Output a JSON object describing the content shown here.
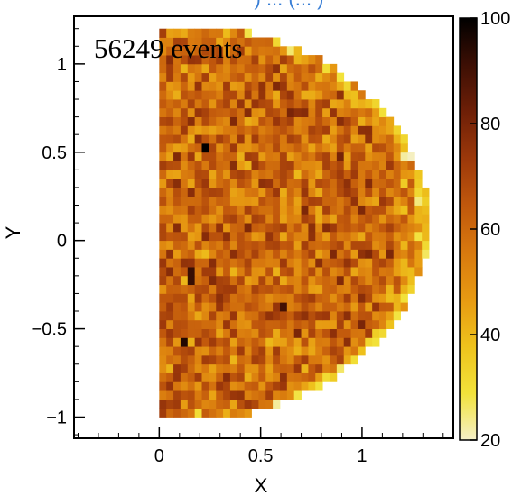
{
  "chart_data": {
    "type": "heatmap",
    "title_fragment": ") ... (... )",
    "annotation": "56249 events",
    "xlabel": "X",
    "ylabel": "Y",
    "xlim": [
      -0.42,
      1.45
    ],
    "ylim": [
      -1.12,
      1.27
    ],
    "x_ticks": [
      {
        "v": 0,
        "label": "0"
      },
      {
        "v": 0.5,
        "label": "0.5"
      },
      {
        "v": 1,
        "label": "1"
      }
    ],
    "y_ticks": [
      {
        "v": 1,
        "label": "1"
      },
      {
        "v": 0.5,
        "label": "0.5"
      },
      {
        "v": 0,
        "label": "0"
      },
      {
        "v": -0.5,
        "label": "−0.5"
      },
      {
        "v": -1,
        "label": "−1"
      }
    ],
    "colorbar": {
      "min": 20,
      "max": 100,
      "ticks": [
        {
          "v": 100,
          "label": "100"
        },
        {
          "v": 80,
          "label": "80"
        },
        {
          "v": 60,
          "label": "60"
        },
        {
          "v": 40,
          "label": "40"
        },
        {
          "v": 20,
          "label": "20"
        }
      ],
      "palette": [
        "#f5f0c8",
        "#f2e23a",
        "#eec21c",
        "#e79a12",
        "#d8790e",
        "#c1580c",
        "#9c380a",
        "#6e1f07",
        "#3d0f04",
        "#000000"
      ]
    },
    "grid": false,
    "bins": {
      "x_min": 0,
      "x_max": 1.4,
      "nx": 40,
      "y_min": -1.0,
      "y_max": 1.2,
      "ny": 44,
      "typical_count": 60
    },
    "region": "D-shaped: x >= 0 and x <= 1.33 * sqrt(1 - ((y - 0.1) / 1.15)^2)",
    "highlighted_bins": [
      {
        "x": 0.22,
        "y": 0.52,
        "count": 100
      },
      {
        "x": 0.12,
        "y": -0.58,
        "count": 95
      },
      {
        "x": 0.17,
        "y": -0.2,
        "count": 92
      },
      {
        "x": 0.62,
        "y": -0.38,
        "count": 90
      },
      {
        "x": 1.32,
        "y": 0.35,
        "count": 42
      },
      {
        "x": 1.3,
        "y": 0.02,
        "count": 40
      },
      {
        "x": 0.18,
        "y": -0.98,
        "count": 30
      },
      {
        "x": 0.68,
        "y": 0.22,
        "count": 45
      },
      {
        "x": 0.85,
        "y": 0.62,
        "count": 46
      }
    ]
  }
}
